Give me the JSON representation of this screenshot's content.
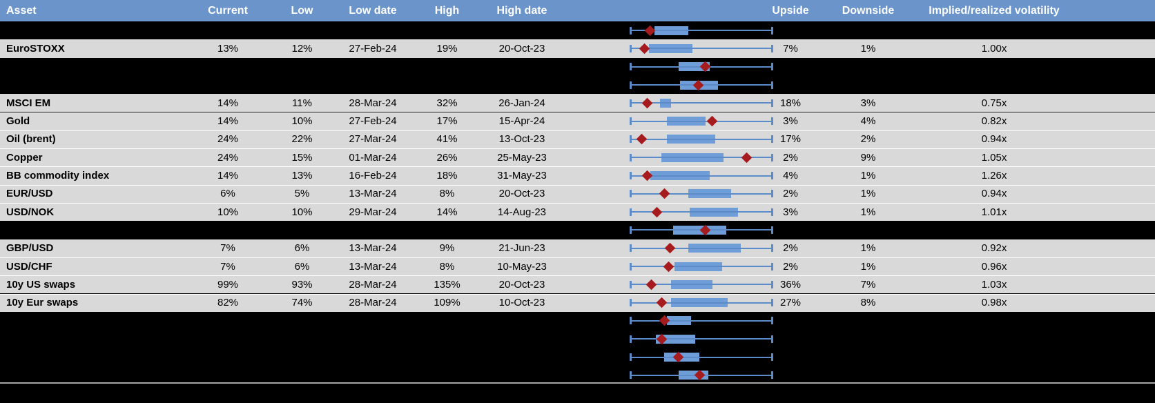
{
  "table": {
    "columns": [
      {
        "key": "asset",
        "label": "Asset"
      },
      {
        "key": "current",
        "label": "Current"
      },
      {
        "key": "low",
        "label": "Low"
      },
      {
        "key": "low_date",
        "label": "Low date"
      },
      {
        "key": "high",
        "label": "High"
      },
      {
        "key": "high_date",
        "label": "High date"
      },
      {
        "key": "plot",
        "label": ""
      },
      {
        "key": "upside",
        "label": "Upside"
      },
      {
        "key": "downside",
        "label": "Downside"
      },
      {
        "key": "implied",
        "label": "Implied/realized volatility"
      }
    ],
    "rows": [
      {
        "hidden": true,
        "asset": "",
        "current": "",
        "low": "",
        "low_date": "",
        "high": "",
        "high_date": "",
        "upside": "",
        "downside": "",
        "implied": "",
        "plot": {
          "box": [
            0.17,
            0.41
          ],
          "marker": 0.14
        }
      },
      {
        "hidden": false,
        "asset": "EuroSTOXX",
        "current": "13%",
        "low": "12%",
        "low_date": "27-Feb-24",
        "high": "19%",
        "high_date": "20-Oct-23",
        "upside": "7%",
        "downside": "1%",
        "implied": "1.00x",
        "plot": {
          "box": [
            0.13,
            0.44
          ],
          "marker": 0.1
        }
      },
      {
        "hidden": true,
        "asset": "",
        "current": "",
        "low": "",
        "low_date": "",
        "high": "",
        "high_date": "",
        "upside": "",
        "downside": "",
        "implied": "",
        "plot": {
          "box": [
            0.34,
            0.56
          ],
          "marker": 0.53
        }
      },
      {
        "hidden": true,
        "asset": "",
        "current": "",
        "low": "",
        "low_date": "",
        "high": "",
        "high_date": "",
        "upside": "",
        "downside": "",
        "implied": "",
        "plot": {
          "box": [
            0.35,
            0.62
          ],
          "marker": 0.48
        }
      },
      {
        "hidden": false,
        "asset": "MSCI EM",
        "current": "14%",
        "low": "11%",
        "low_date": "28-Mar-24",
        "high": "32%",
        "high_date": "26-Jan-24",
        "upside": "18%",
        "downside": "3%",
        "implied": "0.75x",
        "plot": {
          "box": [
            0.21,
            0.29
          ],
          "marker": 0.12
        }
      },
      {
        "hidden": false,
        "asset": "Gold",
        "current": "14%",
        "low": "10%",
        "low_date": "27-Feb-24",
        "high": "17%",
        "high_date": "15-Apr-24",
        "upside": "3%",
        "downside": "4%",
        "implied": "0.82x",
        "plot": {
          "box": [
            0.26,
            0.53
          ],
          "marker": 0.58
        }
      },
      {
        "hidden": false,
        "asset": "Oil (brent)",
        "current": "24%",
        "low": "22%",
        "low_date": "27-Mar-24",
        "high": "41%",
        "high_date": "13-Oct-23",
        "upside": "17%",
        "downside": "2%",
        "implied": "0.94x",
        "plot": {
          "box": [
            0.26,
            0.6
          ],
          "marker": 0.08
        }
      },
      {
        "hidden": false,
        "asset": "Copper",
        "current": "24%",
        "low": "15%",
        "low_date": "01-Mar-24",
        "high": "26%",
        "high_date": "25-May-23",
        "upside": "2%",
        "downside": "9%",
        "implied": "1.05x",
        "plot": {
          "box": [
            0.22,
            0.66
          ],
          "marker": 0.82
        }
      },
      {
        "hidden": false,
        "asset": "BB commodity index",
        "current": "14%",
        "low": "13%",
        "low_date": "16-Feb-24",
        "high": "18%",
        "high_date": "31-May-23",
        "upside": "4%",
        "downside": "1%",
        "implied": "1.26x",
        "plot": {
          "box": [
            0.14,
            0.56
          ],
          "marker": 0.12
        }
      },
      {
        "hidden": false,
        "asset": "EUR/USD",
        "current": "6%",
        "low": "5%",
        "low_date": "13-Mar-24",
        "high": "8%",
        "high_date": "20-Oct-23",
        "upside": "2%",
        "downside": "1%",
        "implied": "0.94x",
        "plot": {
          "box": [
            0.41,
            0.71
          ],
          "marker": 0.24
        }
      },
      {
        "hidden": false,
        "asset": "USD/NOK",
        "current": "10%",
        "low": "10%",
        "low_date": "29-Mar-24",
        "high": "14%",
        "high_date": "14-Aug-23",
        "upside": "3%",
        "downside": "1%",
        "implied": "1.01x",
        "plot": {
          "box": [
            0.42,
            0.76
          ],
          "marker": 0.19
        }
      },
      {
        "hidden": true,
        "asset": "",
        "current": "",
        "low": "",
        "low_date": "",
        "high": "",
        "high_date": "",
        "upside": "",
        "downside": "",
        "implied": "",
        "plot": {
          "box": [
            0.3,
            0.68
          ],
          "marker": 0.53
        }
      },
      {
        "hidden": false,
        "asset": "GBP/USD",
        "current": "7%",
        "low": "6%",
        "low_date": "13-Mar-24",
        "high": "9%",
        "high_date": "21-Jun-23",
        "upside": "2%",
        "downside": "1%",
        "implied": "0.92x",
        "plot": {
          "box": [
            0.41,
            0.78
          ],
          "marker": 0.28
        }
      },
      {
        "hidden": false,
        "asset": "USD/CHF",
        "current": "7%",
        "low": "6%",
        "low_date": "13-Mar-24",
        "high": "8%",
        "high_date": "10-May-23",
        "upside": "2%",
        "downside": "1%",
        "implied": "0.96x",
        "plot": {
          "box": [
            0.31,
            0.65
          ],
          "marker": 0.27
        }
      },
      {
        "hidden": false,
        "asset": "10y US swaps",
        "current": "99%",
        "low": "93%",
        "low_date": "28-Mar-24",
        "high": "135%",
        "high_date": "20-Oct-23",
        "upside": "36%",
        "downside": "7%",
        "implied": "1.03x",
        "plot": {
          "box": [
            0.29,
            0.58
          ],
          "marker": 0.15
        }
      },
      {
        "hidden": false,
        "asset": "10y Eur swaps",
        "current": "82%",
        "low": "74%",
        "low_date": "28-Mar-24",
        "high": "109%",
        "high_date": "10-Oct-23",
        "upside": "27%",
        "downside": "8%",
        "implied": "0.98x",
        "plot": {
          "box": [
            0.29,
            0.69
          ],
          "marker": 0.22
        }
      },
      {
        "hidden": true,
        "asset": "",
        "current": "",
        "low": "",
        "low_date": "",
        "high": "",
        "high_date": "",
        "upside": "",
        "downside": "",
        "implied": "",
        "plot": {
          "box": [
            0.26,
            0.43
          ],
          "marker": 0.24
        }
      },
      {
        "hidden": true,
        "asset": "",
        "current": "",
        "low": "",
        "low_date": "",
        "high": "",
        "high_date": "",
        "upside": "",
        "downside": "",
        "implied": "",
        "plot": {
          "box": [
            0.18,
            0.46
          ],
          "marker": 0.22
        }
      },
      {
        "hidden": true,
        "asset": "",
        "current": "",
        "low": "",
        "low_date": "",
        "high": "",
        "high_date": "",
        "upside": "",
        "downside": "",
        "implied": "",
        "plot": {
          "box": [
            0.24,
            0.49
          ],
          "marker": 0.34
        }
      },
      {
        "hidden": true,
        "asset": "",
        "current": "",
        "low": "",
        "low_date": "",
        "high": "",
        "high_date": "",
        "upside": "",
        "downside": "",
        "implied": "",
        "plot": {
          "box": [
            0.34,
            0.55
          ],
          "marker": 0.49
        }
      }
    ]
  },
  "colors": {
    "header_bg": "#6B94CB",
    "header_text": "#FFFFFF",
    "row_bg": "#D9D9D9",
    "hidden_row_bg": "#000000",
    "cell_text": "#000000",
    "whisker_blue": "#5C8BC9",
    "box_blue": "#6E9DD8",
    "marker_red": "#A61B1E",
    "separator_gray": "#A6A6A6"
  },
  "chart_data": {
    "type": "table",
    "columns": [
      "Asset",
      "Current",
      "Low",
      "Low date",
      "High",
      "High date",
      "Upside",
      "Downside",
      "Implied/realized volatility"
    ],
    "rows": [
      [
        "EuroSTOXX",
        "13%",
        "12%",
        "27-Feb-24",
        "19%",
        "20-Oct-23",
        "7%",
        "1%",
        "1.00x"
      ],
      [
        "MSCI EM",
        "14%",
        "11%",
        "28-Mar-24",
        "32%",
        "26-Jan-24",
        "18%",
        "3%",
        "0.75x"
      ],
      [
        "Gold",
        "14%",
        "10%",
        "27-Feb-24",
        "17%",
        "15-Apr-24",
        "3%",
        "4%",
        "0.82x"
      ],
      [
        "Oil (brent)",
        "24%",
        "22%",
        "27-Mar-24",
        "41%",
        "13-Oct-23",
        "17%",
        "2%",
        "0.94x"
      ],
      [
        "Copper",
        "24%",
        "15%",
        "01-Mar-24",
        "26%",
        "25-May-23",
        "2%",
        "9%",
        "1.05x"
      ],
      [
        "BB commodity index",
        "14%",
        "13%",
        "16-Feb-24",
        "18%",
        "31-May-23",
        "4%",
        "1%",
        "1.26x"
      ],
      [
        "EUR/USD",
        "6%",
        "5%",
        "13-Mar-24",
        "8%",
        "20-Oct-23",
        "2%",
        "1%",
        "0.94x"
      ],
      [
        "USD/NOK",
        "10%",
        "10%",
        "29-Mar-24",
        "14%",
        "14-Aug-23",
        "3%",
        "1%",
        "1.01x"
      ],
      [
        "GBP/USD",
        "7%",
        "6%",
        "13-Mar-24",
        "9%",
        "21-Jun-23",
        "2%",
        "1%",
        "0.92x"
      ],
      [
        "USD/CHF",
        "7%",
        "6%",
        "13-Mar-24",
        "8%",
        "10-May-23",
        "2%",
        "1%",
        "0.96x"
      ],
      [
        "10y US swaps",
        "99%",
        "93%",
        "28-Mar-24",
        "135%",
        "20-Oct-23",
        "36%",
        "7%",
        "1.03x"
      ],
      [
        "10y Eur swaps",
        "82%",
        "74%",
        "28-Mar-24",
        "109%",
        "10-Oct-23",
        "27%",
        "8%",
        "0.98x"
      ]
    ],
    "boxplot_column": {
      "type": "boxplot",
      "note": "one horizontal box-whisker per row; whiskers span a fixed min-max range (no axis labels visible); values below are fractions of that span",
      "series": [
        {
          "row": 0,
          "asset": "",
          "box": [
            0.17,
            0.41
          ],
          "marker": 0.14
        },
        {
          "row": 1,
          "asset": "EuroSTOXX",
          "box": [
            0.13,
            0.44
          ],
          "marker": 0.1
        },
        {
          "row": 2,
          "asset": "",
          "box": [
            0.34,
            0.56
          ],
          "marker": 0.53
        },
        {
          "row": 3,
          "asset": "",
          "box": [
            0.35,
            0.62
          ],
          "marker": 0.48
        },
        {
          "row": 4,
          "asset": "MSCI EM",
          "box": [
            0.21,
            0.29
          ],
          "marker": 0.12
        },
        {
          "row": 5,
          "asset": "Gold",
          "box": [
            0.26,
            0.53
          ],
          "marker": 0.58
        },
        {
          "row": 6,
          "asset": "Oil (brent)",
          "box": [
            0.26,
            0.6
          ],
          "marker": 0.08
        },
        {
          "row": 7,
          "asset": "Copper",
          "box": [
            0.22,
            0.66
          ],
          "marker": 0.82
        },
        {
          "row": 8,
          "asset": "BB commodity index",
          "box": [
            0.14,
            0.56
          ],
          "marker": 0.12
        },
        {
          "row": 9,
          "asset": "EUR/USD",
          "box": [
            0.41,
            0.71
          ],
          "marker": 0.24
        },
        {
          "row": 10,
          "asset": "USD/NOK",
          "box": [
            0.42,
            0.76
          ],
          "marker": 0.19
        },
        {
          "row": 11,
          "asset": "",
          "box": [
            0.3,
            0.68
          ],
          "marker": 0.53
        },
        {
          "row": 12,
          "asset": "GBP/USD",
          "box": [
            0.41,
            0.78
          ],
          "marker": 0.28
        },
        {
          "row": 13,
          "asset": "USD/CHF",
          "box": [
            0.31,
            0.65
          ],
          "marker": 0.27
        },
        {
          "row": 14,
          "asset": "10y US swaps",
          "box": [
            0.29,
            0.58
          ],
          "marker": 0.15
        },
        {
          "row": 15,
          "asset": "10y Eur swaps",
          "box": [
            0.29,
            0.69
          ],
          "marker": 0.22
        },
        {
          "row": 16,
          "asset": "",
          "box": [
            0.26,
            0.43
          ],
          "marker": 0.24
        },
        {
          "row": 17,
          "asset": "",
          "box": [
            0.18,
            0.46
          ],
          "marker": 0.22
        },
        {
          "row": 18,
          "asset": "",
          "box": [
            0.24,
            0.49
          ],
          "marker": 0.34
        },
        {
          "row": 19,
          "asset": "",
          "box": [
            0.34,
            0.55
          ],
          "marker": 0.49
        }
      ]
    }
  }
}
